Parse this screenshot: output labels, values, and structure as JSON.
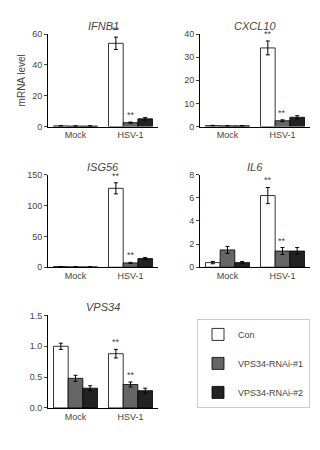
{
  "chart_data": [
    {
      "type": "bar",
      "title": "IFNB1",
      "ylabel": "mRNA level",
      "categories": [
        "Mock",
        "HSV-1"
      ],
      "series": [
        {
          "name": "Con",
          "color": "white",
          "values": [
            0.4,
            54
          ],
          "errors": [
            0.1,
            4
          ]
        },
        {
          "name": "VPS34-RNAi-#1",
          "color": "#666666",
          "values": [
            0.3,
            2.5
          ],
          "errors": [
            0.1,
            0.4
          ]
        },
        {
          "name": "VPS34-RNAi-#2",
          "color": "#222222",
          "values": [
            0.3,
            5
          ],
          "errors": [
            0.1,
            0.8
          ]
        }
      ],
      "ylim": [
        0,
        60
      ],
      "yticks": [
        0,
        20,
        40,
        60
      ],
      "grid": false,
      "legend": "lower right",
      "annotations": [
        {
          "text": "**",
          "category": "HSV-1",
          "series": "Con"
        },
        {
          "text": "**",
          "category": "HSV-1",
          "series": "VPS34-RNAi-#1"
        }
      ]
    },
    {
      "type": "bar",
      "title": "CXCL10",
      "categories": [
        "Mock",
        "HSV-1"
      ],
      "series": [
        {
          "name": "Con",
          "color": "white",
          "values": [
            0.4,
            34
          ],
          "errors": [
            0.1,
            3
          ]
        },
        {
          "name": "VPS34-RNAi-#1",
          "color": "#666666",
          "values": [
            0.3,
            2.5
          ],
          "errors": [
            0.1,
            0.4
          ]
        },
        {
          "name": "VPS34-RNAi-#2",
          "color": "#222222",
          "values": [
            0.3,
            4
          ],
          "errors": [
            0.1,
            0.7
          ]
        }
      ],
      "ylim": [
        0,
        40
      ],
      "yticks": [
        0,
        10,
        20,
        30,
        40
      ],
      "grid": false,
      "annotations": [
        {
          "text": "**",
          "category": "HSV-1",
          "series": "Con"
        },
        {
          "text": "**",
          "category": "HSV-1",
          "series": "VPS34-RNAi-#1"
        }
      ]
    },
    {
      "type": "bar",
      "title": "ISG56",
      "categories": [
        "Mock",
        "HSV-1"
      ],
      "series": [
        {
          "name": "Con",
          "color": "white",
          "values": [
            1,
            128
          ],
          "errors": [
            0.2,
            9
          ]
        },
        {
          "name": "VPS34-RNAi-#1",
          "color": "#666666",
          "values": [
            0.5,
            7
          ],
          "errors": [
            0.1,
            0.9
          ]
        },
        {
          "name": "VPS34-RNAi-#2",
          "color": "#222222",
          "values": [
            0.5,
            14
          ],
          "errors": [
            0.1,
            1.8
          ]
        }
      ],
      "ylim": [
        0,
        150
      ],
      "yticks": [
        0,
        50,
        100,
        150
      ],
      "grid": false,
      "annotations": [
        {
          "text": "**",
          "category": "HSV-1",
          "series": "Con"
        },
        {
          "text": "**",
          "category": "HSV-1",
          "series": "VPS34-RNAi-#1"
        }
      ]
    },
    {
      "type": "bar",
      "title": "IL6",
      "categories": [
        "Mock",
        "HSV-1"
      ],
      "series": [
        {
          "name": "Con",
          "color": "white",
          "values": [
            0.4,
            6.2
          ],
          "errors": [
            0.1,
            0.7
          ]
        },
        {
          "name": "VPS34-RNAi-#1",
          "color": "#666666",
          "values": [
            1.5,
            1.4
          ],
          "errors": [
            0.3,
            0.3
          ]
        },
        {
          "name": "VPS34-RNAi-#2",
          "color": "#222222",
          "values": [
            0.4,
            1.4
          ],
          "errors": [
            0.1,
            0.3
          ]
        }
      ],
      "ylim": [
        0,
        8
      ],
      "yticks": [
        0,
        2,
        4,
        6,
        8
      ],
      "grid": false,
      "annotations": [
        {
          "text": "**",
          "category": "HSV-1",
          "series": "Con"
        },
        {
          "text": "**",
          "category": "HSV-1",
          "series": "VPS34-RNAi-#1"
        }
      ]
    },
    {
      "type": "bar",
      "title": "VPS34",
      "categories": [
        "Mock",
        "HSV-1"
      ],
      "series": [
        {
          "name": "Con",
          "color": "white",
          "values": [
            1.0,
            0.88
          ],
          "errors": [
            0.05,
            0.07
          ]
        },
        {
          "name": "VPS34-RNAi-#1",
          "color": "#666666",
          "values": [
            0.48,
            0.38
          ],
          "errors": [
            0.05,
            0.04
          ]
        },
        {
          "name": "VPS34-RNAi-#2",
          "color": "#222222",
          "values": [
            0.32,
            0.28
          ],
          "errors": [
            0.04,
            0.04
          ]
        }
      ],
      "ylim": [
        0,
        1.5
      ],
      "yticks": [
        {
          "value": 0,
          "label": "0.0"
        },
        {
          "value": 0.5,
          "label": "0.5"
        },
        {
          "value": 1.0,
          "label": "1.0"
        },
        {
          "value": 1.5,
          "label": "1.5"
        }
      ],
      "grid": false,
      "annotations": [
        {
          "text": "**",
          "category": "HSV-1",
          "series": "Con"
        },
        {
          "text": "**",
          "category": "HSV-1",
          "series": "VPS34-RNAi-#1"
        }
      ]
    }
  ]
}
